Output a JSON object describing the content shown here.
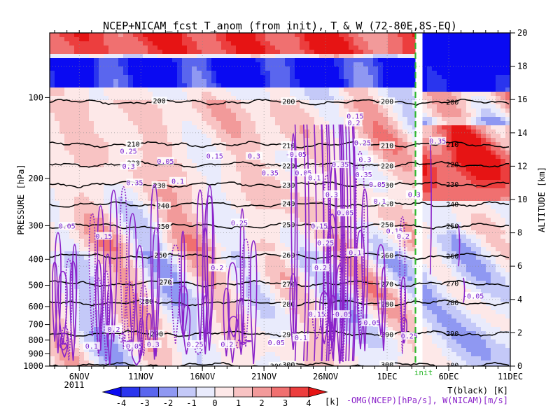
{
  "chart_data": {
    "type": "heatmap",
    "title": "NCEP+NICAM_fcst T_anom (from init), T & W  (72-80E,8S-EQ)",
    "ylabel_left": "PRESSURE [hPa]",
    "ylabel_right": "ALTITUDE [km]",
    "x_ticks": [
      {
        "label": "6NOV",
        "day": 6
      },
      {
        "label": "11NOV",
        "day": 11
      },
      {
        "label": "16NOV",
        "day": 16
      },
      {
        "label": "21NOV",
        "day": 21
      },
      {
        "label": "26NOV",
        "day": 26
      },
      {
        "label": "1DEC",
        "day": 31
      },
      {
        "label": "6DEC",
        "day": 36
      },
      {
        "label": "11DEC",
        "day": 41
      }
    ],
    "x_range_days": [
      3.6,
      41
    ],
    "year_label": "2011",
    "init_day": 33.3,
    "init_label": "init",
    "pressure_ticks": [
      100,
      200,
      300,
      400,
      500,
      600,
      700,
      800,
      900,
      1000
    ],
    "altitude_ticks": [
      0,
      2,
      4,
      6,
      8,
      10,
      12,
      14,
      16,
      18,
      20
    ],
    "altitude_range_km": [
      0,
      20
    ],
    "colorbar": {
      "ticks": [
        "-4",
        "-3",
        "-2",
        "-1",
        "0",
        "1",
        "2",
        "3",
        "4"
      ],
      "unit": "[k]",
      "colors": [
        "#0a0af2",
        "#2a35ee",
        "#5a66ee",
        "#8f98f2",
        "#c4c9f8",
        "#e9ebfc",
        "#fde8e8",
        "#f8c3c3",
        "#f29a9a",
        "#f07070",
        "#ec3e3e",
        "#e61414"
      ]
    },
    "temperature_contours": {
      "labels_K": [
        "200",
        "210",
        "220",
        "230",
        "240",
        "250",
        "260",
        "270",
        "280",
        "290",
        "300"
      ],
      "altitude_km": [
        15.85,
        13.3,
        12.1,
        10.9,
        9.7,
        8.4,
        6.6,
        4.95,
        3.8,
        1.95,
        0.05
      ]
    },
    "omega_w_labels": [
      "0.05",
      "0.1",
      "0.15",
      "0.2",
      "0.25",
      "0.3",
      "0.35",
      "-0.05"
    ],
    "legend": {
      "line1": "T(black) [K]",
      "line2": "-OMG(NCEP)[hPa/s], W(NICAM)[m/s]"
    }
  }
}
